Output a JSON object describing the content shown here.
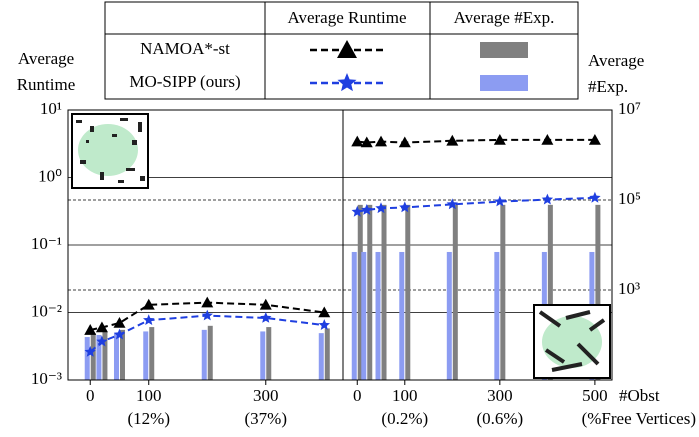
{
  "legend": {
    "columns": [
      "Average Runtime",
      "Average #Exp."
    ],
    "entries": [
      {
        "name": "NAMOA*-st",
        "color": "#000000",
        "bar_color": "#808080",
        "marker": "triangle"
      },
      {
        "name": "MO-SIPP (ours)",
        "color": "#1f3fe0",
        "bar_color": "#8c9cf2",
        "marker": "star"
      }
    ]
  },
  "axes": {
    "log": true,
    "y_label": [
      "Average",
      "Runtime"
    ],
    "y2_label": [
      "Average",
      "#Exp."
    ],
    "ylim": [
      0.001,
      10
    ],
    "yticks": [
      {
        "value": 10,
        "label": "10¹"
      },
      {
        "value": 1,
        "label": "10⁰"
      },
      {
        "value": 0.1,
        "label": "10⁻¹"
      },
      {
        "value": 0.01,
        "label": "10⁻²"
      },
      {
        "value": 0.001,
        "label": "10⁻³"
      }
    ],
    "y2lim": [
      10,
      10000000
    ],
    "y2ticks": [
      {
        "value": 10000000,
        "label": "10⁷"
      },
      {
        "value": 100000,
        "label": "10⁵"
      },
      {
        "value": 1000,
        "label": "10³"
      }
    ]
  },
  "chart_data": [
    {
      "type": "line",
      "xlim": [
        -38,
        432
      ],
      "xticks": [
        0,
        100,
        300
      ],
      "xtick_sublabels": [
        {
          "value": 100,
          "label": "(12%)"
        },
        {
          "value": 300,
          "label": "(37%)"
        }
      ],
      "x": [
        0,
        20,
        50,
        100,
        200,
        300,
        400
      ],
      "series": [
        {
          "values": [
            0.0055,
            0.006,
            0.007,
            0.013,
            0.014,
            0.013,
            0.01
          ],
          "exp": [
            110,
            120,
            130,
            150,
            160,
            150,
            140
          ]
        },
        {
          "values": [
            0.0026,
            0.0037,
            0.0047,
            0.0077,
            0.009,
            0.0083,
            0.0065
          ],
          "exp": [
            90,
            100,
            110,
            120,
            130,
            120,
            110
          ]
        }
      ]
    },
    {
      "type": "line",
      "xlim": [
        -30,
        536
      ],
      "xticks": [
        0,
        100,
        300,
        500
      ],
      "xtick_sublabels": [
        {
          "value": 100,
          "label": "(0.2%)"
        },
        {
          "value": 300,
          "label": "(0.6%)"
        }
      ],
      "x_label": "#Obst",
      "x_sublabel": "(%Free Vertices)",
      "x": [
        0,
        20,
        50,
        100,
        200,
        300,
        400,
        500
      ],
      "series": [
        {
          "values": [
            3.4,
            3.3,
            3.4,
            3.3,
            3.5,
            3.6,
            3.6,
            3.6
          ],
          "exp": [
            78000,
            78000,
            78000,
            78000,
            78000,
            78000,
            78000,
            78000
          ]
        },
        {
          "values": [
            0.31,
            0.33,
            0.35,
            0.36,
            0.4,
            0.44,
            0.47,
            0.5
          ],
          "exp": [
            7000,
            7000,
            7000,
            7000,
            7000,
            7000,
            7000,
            7000
          ]
        }
      ]
    }
  ]
}
